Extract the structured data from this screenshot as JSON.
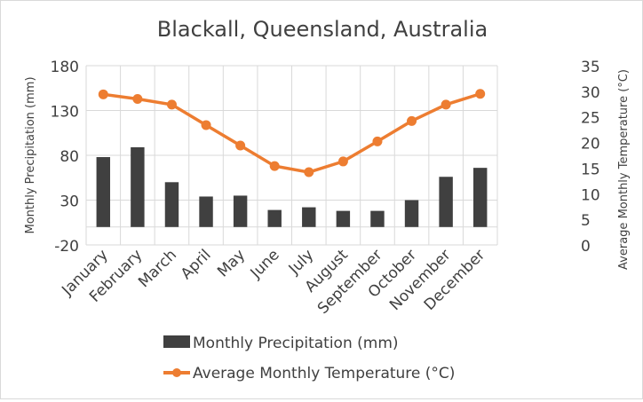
{
  "chart_data": {
    "type": "bar+line",
    "title": "Blackall, Queensland, Australia",
    "categories": [
      "January",
      "February",
      "March",
      "April",
      "May",
      "June",
      "July",
      "August",
      "September",
      "October",
      "November",
      "December"
    ],
    "series": [
      {
        "name": "Monthly Precipitation  (mm)",
        "type": "bar",
        "axis": "left",
        "color": "#404040",
        "values": [
          78,
          89,
          50,
          34,
          35,
          19,
          22,
          18,
          18,
          30,
          56,
          66
        ]
      },
      {
        "name": "Average Monthly  Temperature (°C)",
        "type": "line",
        "axis": "right",
        "color": "#ED7D31",
        "values": [
          29.4,
          28.5,
          27.4,
          23.4,
          19.4,
          15.4,
          14.2,
          16.3,
          20.2,
          24.2,
          27.4,
          29.5
        ]
      }
    ],
    "ylabel": "Monthly Precipitation  (mm)",
    "y2label": "Average Monthly  Temperature (°C)",
    "ylim": [
      -20,
      180
    ],
    "yticks": [
      "-20",
      "30",
      "80",
      "130",
      "180"
    ],
    "y2lim": [
      0,
      35
    ],
    "y2ticks": [
      "0",
      "5",
      "10",
      "15",
      "20",
      "25",
      "30",
      "35"
    ],
    "grid": true,
    "legend": "bottom"
  }
}
